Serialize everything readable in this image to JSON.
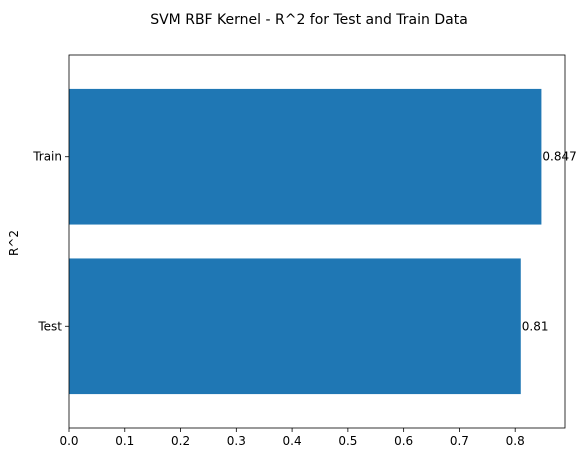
{
  "chart_data": {
    "type": "bar",
    "orientation": "horizontal",
    "title": "SVM RBF Kernel - R^2 for Test and Train Data",
    "xlabel": "",
    "ylabel": "R^2",
    "categories": [
      "Test",
      "Train"
    ],
    "values": [
      0.81,
      0.847
    ],
    "value_labels": [
      "0.81",
      "0.847"
    ],
    "xlim": [
      0.0,
      0.8893
    ],
    "xticks": [
      0.0,
      0.1,
      0.2,
      0.3,
      0.4,
      0.5,
      0.6,
      0.7,
      0.8
    ],
    "xtick_labels": [
      "0.0",
      "0.1",
      "0.2",
      "0.3",
      "0.4",
      "0.5",
      "0.6",
      "0.7",
      "0.8"
    ],
    "grid": false,
    "legend": "none",
    "colors": {
      "bar": "#1f77b4",
      "axis": "#000000",
      "background": "#ffffff"
    }
  }
}
